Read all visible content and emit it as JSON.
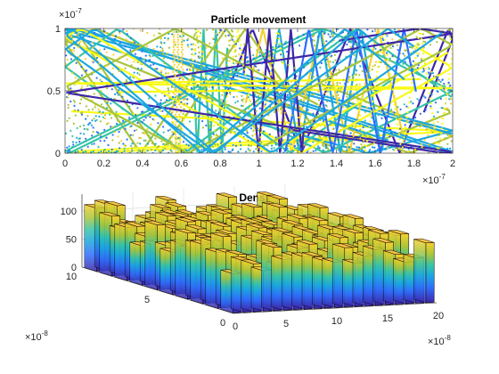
{
  "chart_data": [
    {
      "type": "scatter",
      "title": "Particle movement",
      "xlabel": "",
      "ylabel": "",
      "xlim": [
        0,
        2
      ],
      "ylim": [
        0,
        1
      ],
      "x_ticks": [
        "0",
        "0.2",
        "0.4",
        "0.6",
        "0.8",
        "1",
        "1.2",
        "1.4",
        "1.6",
        "1.8",
        "2"
      ],
      "y_ticks": [
        "0",
        "0.5",
        "1"
      ],
      "x_exponent": "-7",
      "y_exponent": "-7",
      "grid": false,
      "colors": [
        "#3e26a8",
        "#2f6efb",
        "#1ca7e0",
        "#36c4a8",
        "#a8c53a",
        "#f8d12f",
        "#f9fb15"
      ]
    },
    {
      "type": "bar3",
      "title": "Density",
      "xlabel": "",
      "ylabel": "",
      "zlim": [
        0,
        130
      ],
      "z_ticks": [
        "0",
        "50",
        "100"
      ],
      "x_ticks": [
        "0",
        "5",
        "10",
        "15",
        "20"
      ],
      "y_ticks": [
        "0",
        "5",
        "10"
      ],
      "x_exponent": "-8",
      "y_exponent": "-8",
      "grid": true,
      "colormap": [
        "#3e26a8",
        "#2f6efb",
        "#1ca7e0",
        "#36c4a8",
        "#a8c53a",
        "#f8d12f",
        "#f9fb15"
      ],
      "face_color": "#f7c243"
    }
  ]
}
